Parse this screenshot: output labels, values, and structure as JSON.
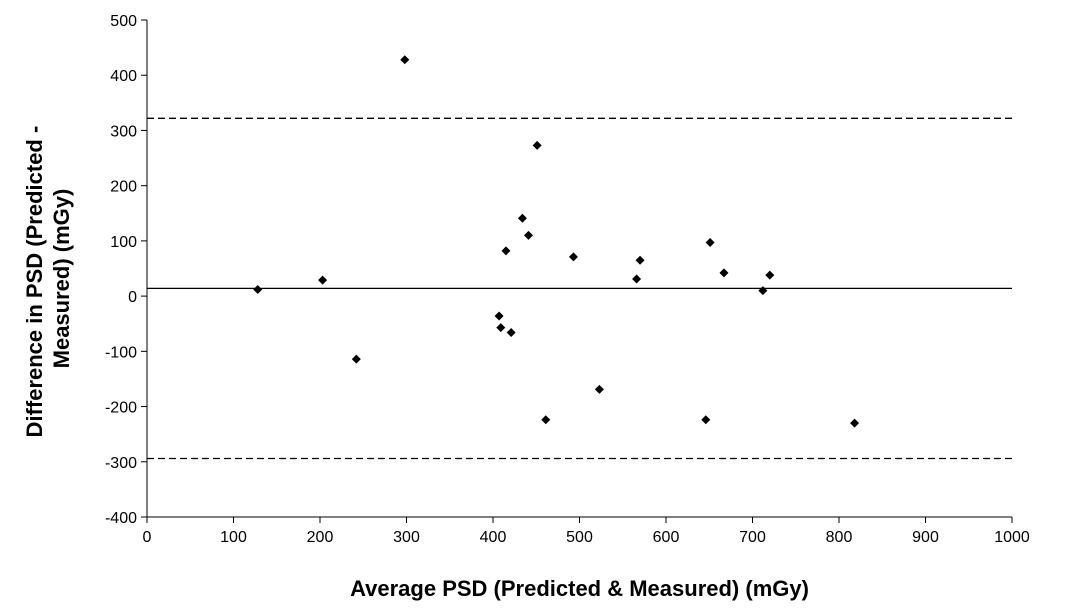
{
  "chart_data": {
    "type": "scatter",
    "title": "",
    "xlabel": "Average PSD (Predicted & Measured) (mGy)",
    "ylabel_line1": "Difference in PSD (Predicted -",
    "ylabel_line2": "Measured) (mGy)",
    "xlim": [
      0,
      1000
    ],
    "ylim": [
      -400,
      500
    ],
    "xticks": [
      "0",
      "100",
      "200",
      "300",
      "400",
      "500",
      "600",
      "700",
      "800",
      "900",
      "1000"
    ],
    "yticks": [
      "-400",
      "-300",
      "-200",
      "-100",
      "0",
      "100",
      "200",
      "300",
      "400",
      "500"
    ],
    "grid": false,
    "legend": "none",
    "marker": "diamond",
    "marker_color": "#000000",
    "reference_lines": [
      {
        "y": 322,
        "style": "dashed"
      },
      {
        "y": 14,
        "style": "solid"
      },
      {
        "y": -294,
        "style": "dashed"
      }
    ],
    "points": [
      {
        "x": 128,
        "y": 12
      },
      {
        "x": 203,
        "y": 29
      },
      {
        "x": 242,
        "y": -114
      },
      {
        "x": 298,
        "y": 428
      },
      {
        "x": 407,
        "y": -36
      },
      {
        "x": 409,
        "y": -57
      },
      {
        "x": 415,
        "y": 82
      },
      {
        "x": 421,
        "y": -66
      },
      {
        "x": 434,
        "y": 141
      },
      {
        "x": 441,
        "y": 110
      },
      {
        "x": 451,
        "y": 273
      },
      {
        "x": 461,
        "y": -224
      },
      {
        "x": 493,
        "y": 71
      },
      {
        "x": 523,
        "y": -169
      },
      {
        "x": 566,
        "y": 31
      },
      {
        "x": 570,
        "y": 65
      },
      {
        "x": 646,
        "y": -224
      },
      {
        "x": 651,
        "y": 97
      },
      {
        "x": 667,
        "y": 42
      },
      {
        "x": 712,
        "y": 10
      },
      {
        "x": 720,
        "y": 38
      },
      {
        "x": 818,
        "y": -230
      }
    ]
  }
}
